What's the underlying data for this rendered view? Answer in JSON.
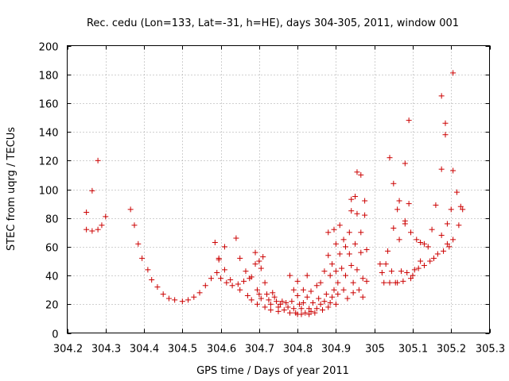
{
  "chart_data": {
    "type": "scatter",
    "title": "Rec. cedu (Lon=133, Lat=-31, h=HE), days 304-305, 2011, window 001",
    "xlabel": "GPS time / Days of year 2011",
    "ylabel": "STEC from uqrg / TECUs",
    "xlim": [
      304.2,
      305.3
    ],
    "ylim": [
      0,
      200
    ],
    "xticks": [
      304.2,
      304.3,
      304.4,
      304.5,
      304.6,
      304.7,
      304.8,
      304.9,
      305.0,
      305.1,
      305.2,
      305.3
    ],
    "xtick_labels": [
      "304.2",
      "304.3",
      "304.4",
      "304.5",
      "304.6",
      "304.7",
      "304.8",
      "304.9",
      "305",
      "305.1",
      "305.2",
      "305.3"
    ],
    "yticks": [
      0,
      20,
      40,
      60,
      80,
      100,
      120,
      140,
      160,
      180,
      200
    ],
    "ytick_labels": [
      "0",
      "20",
      "40",
      "60",
      "80",
      "100",
      "120",
      "140",
      "160",
      "180",
      "200"
    ],
    "grid": true,
    "marker": "plus",
    "marker_color": "#cc0000",
    "series": [
      {
        "name": "STEC",
        "points": [
          [
            304.25,
            84
          ],
          [
            304.25,
            72
          ],
          [
            304.265,
            99
          ],
          [
            304.265,
            71
          ],
          [
            304.28,
            120
          ],
          [
            304.28,
            72
          ],
          [
            304.29,
            75
          ],
          [
            304.3,
            81
          ],
          [
            304.365,
            86
          ],
          [
            304.375,
            75
          ],
          [
            304.385,
            62
          ],
          [
            304.395,
            52
          ],
          [
            304.41,
            44
          ],
          [
            304.42,
            37
          ],
          [
            304.435,
            32
          ],
          [
            304.45,
            27
          ],
          [
            304.465,
            24
          ],
          [
            304.48,
            23
          ],
          [
            304.5,
            22
          ],
          [
            304.515,
            23
          ],
          [
            304.53,
            25
          ],
          [
            304.545,
            28
          ],
          [
            304.56,
            33
          ],
          [
            304.575,
            38
          ],
          [
            304.585,
            63
          ],
          [
            304.59,
            42
          ],
          [
            304.595,
            52
          ],
          [
            304.595,
            51
          ],
          [
            304.6,
            38
          ],
          [
            304.61,
            60
          ],
          [
            304.61,
            44
          ],
          [
            304.615,
            35
          ],
          [
            304.625,
            37
          ],
          [
            304.63,
            33
          ],
          [
            304.64,
            66
          ],
          [
            304.645,
            34
          ],
          [
            304.65,
            52
          ],
          [
            304.65,
            30
          ],
          [
            304.66,
            36
          ],
          [
            304.665,
            43
          ],
          [
            304.67,
            26
          ],
          [
            304.675,
            38
          ],
          [
            304.68,
            39
          ],
          [
            304.68,
            23
          ],
          [
            304.69,
            56
          ],
          [
            304.69,
            48
          ],
          [
            304.695,
            30
          ],
          [
            304.695,
            20
          ],
          [
            304.7,
            50
          ],
          [
            304.7,
            27
          ],
          [
            304.705,
            45
          ],
          [
            304.705,
            24
          ],
          [
            304.71,
            53
          ],
          [
            304.715,
            18
          ],
          [
            304.715,
            35
          ],
          [
            304.72,
            27
          ],
          [
            304.725,
            23
          ],
          [
            304.73,
            16
          ],
          [
            304.73,
            20
          ],
          [
            304.735,
            28
          ],
          [
            304.74,
            25
          ],
          [
            304.745,
            22
          ],
          [
            304.75,
            18
          ],
          [
            304.75,
            15
          ],
          [
            304.755,
            20
          ],
          [
            304.76,
            22
          ],
          [
            304.765,
            16
          ],
          [
            304.77,
            21
          ],
          [
            304.775,
            18
          ],
          [
            304.78,
            40
          ],
          [
            304.78,
            14
          ],
          [
            304.785,
            22
          ],
          [
            304.79,
            30
          ],
          [
            304.79,
            17
          ],
          [
            304.795,
            14
          ],
          [
            304.8,
            36
          ],
          [
            304.8,
            26
          ],
          [
            304.8,
            13
          ],
          [
            304.805,
            20
          ],
          [
            304.81,
            17
          ],
          [
            304.81,
            13
          ],
          [
            304.815,
            30
          ],
          [
            304.815,
            21
          ],
          [
            304.82,
            14
          ],
          [
            304.825,
            40
          ],
          [
            304.825,
            25
          ],
          [
            304.83,
            17
          ],
          [
            304.83,
            13
          ],
          [
            304.835,
            29
          ],
          [
            304.835,
            15
          ],
          [
            304.84,
            21
          ],
          [
            304.845,
            14
          ],
          [
            304.85,
            33
          ],
          [
            304.85,
            17
          ],
          [
            304.855,
            24
          ],
          [
            304.86,
            20
          ],
          [
            304.86,
            35
          ],
          [
            304.865,
            16
          ],
          [
            304.87,
            43
          ],
          [
            304.87,
            22
          ],
          [
            304.875,
            27
          ],
          [
            304.88,
            18
          ],
          [
            304.88,
            54
          ],
          [
            304.88,
            70
          ],
          [
            304.885,
            40
          ],
          [
            304.885,
            21
          ],
          [
            304.89,
            48
          ],
          [
            304.89,
            25
          ],
          [
            304.895,
            72
          ],
          [
            304.895,
            30
          ],
          [
            304.9,
            62
          ],
          [
            304.9,
            43
          ],
          [
            304.9,
            20
          ],
          [
            304.905,
            35
          ],
          [
            304.905,
            27
          ],
          [
            304.91,
            75
          ],
          [
            304.91,
            55
          ],
          [
            304.915,
            45
          ],
          [
            304.92,
            65
          ],
          [
            304.92,
            30
          ],
          [
            304.925,
            60
          ],
          [
            304.925,
            40
          ],
          [
            304.93,
            24
          ],
          [
            304.935,
            70
          ],
          [
            304.935,
            55
          ],
          [
            304.94,
            93
          ],
          [
            304.94,
            85
          ],
          [
            304.94,
            47
          ],
          [
            304.945,
            35
          ],
          [
            304.945,
            28
          ],
          [
            304.95,
            95
          ],
          [
            304.95,
            62
          ],
          [
            304.955,
            112
          ],
          [
            304.955,
            83
          ],
          [
            304.955,
            44
          ],
          [
            304.96,
            30
          ],
          [
            304.965,
            110
          ],
          [
            304.965,
            70
          ],
          [
            304.965,
            56
          ],
          [
            304.97,
            38
          ],
          [
            304.97,
            25
          ],
          [
            304.975,
            92
          ],
          [
            304.975,
            82
          ],
          [
            304.98,
            58
          ],
          [
            304.98,
            36
          ],
          [
            305.015,
            48
          ],
          [
            305.02,
            42
          ],
          [
            305.025,
            35
          ],
          [
            305.03,
            48
          ],
          [
            305.035,
            57
          ],
          [
            305.04,
            122
          ],
          [
            305.04,
            35
          ],
          [
            305.045,
            43
          ],
          [
            305.05,
            104
          ],
          [
            305.05,
            73
          ],
          [
            305.055,
            35
          ],
          [
            305.06,
            86
          ],
          [
            305.06,
            35
          ],
          [
            305.065,
            92
          ],
          [
            305.065,
            65
          ],
          [
            305.07,
            43
          ],
          [
            305.075,
            36
          ],
          [
            305.08,
            118
          ],
          [
            305.08,
            78
          ],
          [
            305.08,
            76
          ],
          [
            305.085,
            42
          ],
          [
            305.09,
            148
          ],
          [
            305.09,
            90
          ],
          [
            305.095,
            70
          ],
          [
            305.095,
            38
          ],
          [
            305.1,
            40
          ],
          [
            305.105,
            44
          ],
          [
            305.11,
            65
          ],
          [
            305.115,
            45
          ],
          [
            305.12,
            63
          ],
          [
            305.12,
            50
          ],
          [
            305.13,
            62
          ],
          [
            305.13,
            47
          ],
          [
            305.14,
            60
          ],
          [
            305.145,
            50
          ],
          [
            305.15,
            72
          ],
          [
            305.155,
            52
          ],
          [
            305.16,
            89
          ],
          [
            305.165,
            55
          ],
          [
            305.175,
            165
          ],
          [
            305.175,
            114
          ],
          [
            305.175,
            68
          ],
          [
            305.18,
            57
          ],
          [
            305.185,
            146
          ],
          [
            305.185,
            138
          ],
          [
            305.19,
            76
          ],
          [
            305.19,
            62
          ],
          [
            305.195,
            60
          ],
          [
            305.2,
            86
          ],
          [
            305.205,
            181
          ],
          [
            305.205,
            113
          ],
          [
            305.205,
            65
          ],
          [
            305.215,
            98
          ],
          [
            305.22,
            75
          ],
          [
            305.225,
            88
          ],
          [
            305.23,
            86
          ]
        ]
      }
    ]
  }
}
